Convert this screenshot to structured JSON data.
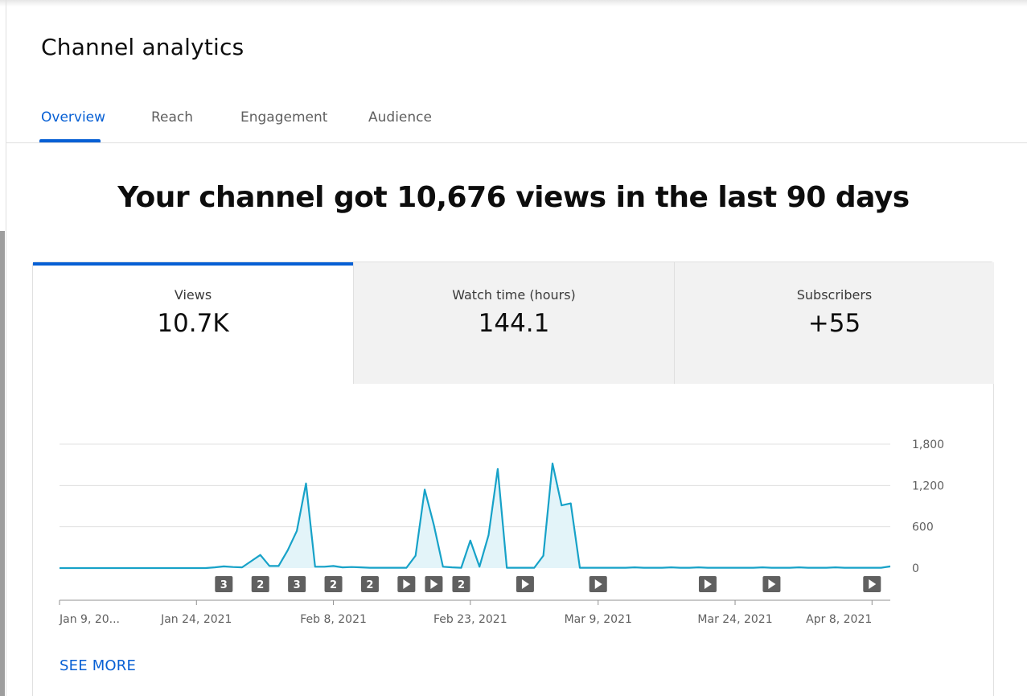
{
  "header": {
    "title": "Channel analytics"
  },
  "tabs": [
    {
      "label": "Overview",
      "active": true
    },
    {
      "label": "Reach",
      "active": false
    },
    {
      "label": "Engagement",
      "active": false
    },
    {
      "label": "Audience",
      "active": false
    }
  ],
  "headline": "Your channel got 10,676 views in the last 90 days",
  "metrics": [
    {
      "label": "Views",
      "value": "10.7K",
      "active": true
    },
    {
      "label": "Watch time (hours)",
      "value": "144.1",
      "active": false
    },
    {
      "label": "Subscribers",
      "value": "+55",
      "active": false
    }
  ],
  "colors": {
    "accent": "#065fd4",
    "line": "#17a2c8",
    "fill": "#e3f4f9",
    "marker": "#606060"
  },
  "chart_data": {
    "type": "line",
    "x_tick_labels": [
      "Jan 9, 20...",
      "Jan 24, 2021",
      "Feb 8, 2021",
      "Feb 23, 2021",
      "Mar 9, 2021",
      "Mar 24, 2021",
      "Apr 8, 2021"
    ],
    "x_tick_days": [
      0,
      15,
      30,
      45,
      59,
      74,
      89
    ],
    "y_ticks": [
      {
        "value": 0,
        "label": "0"
      },
      {
        "value": 600,
        "label": "600"
      },
      {
        "value": 1200,
        "label": "1,200"
      },
      {
        "value": 1800,
        "label": "1,800"
      }
    ],
    "ylim": [
      0,
      1800
    ],
    "grid": true,
    "values": [
      0,
      0,
      0,
      0,
      0,
      0,
      0,
      0,
      0,
      0,
      0,
      0,
      0,
      0,
      0,
      0,
      0,
      10,
      25,
      15,
      10,
      100,
      190,
      30,
      30,
      260,
      540,
      1230,
      20,
      20,
      30,
      10,
      15,
      10,
      5,
      5,
      5,
      5,
      5,
      180,
      1140,
      630,
      20,
      10,
      5,
      400,
      20,
      480,
      1440,
      5,
      5,
      5,
      5,
      180,
      1520,
      910,
      940,
      5,
      5,
      5,
      5,
      5,
      5,
      10,
      5,
      5,
      5,
      10,
      5,
      5,
      10,
      5,
      5,
      5,
      5,
      5,
      5,
      10,
      5,
      5,
      5,
      10,
      5,
      5,
      5,
      10,
      5,
      5,
      5,
      5,
      5,
      25
    ],
    "markers": [
      {
        "day": 18,
        "label": "3"
      },
      {
        "day": 22,
        "label": "2"
      },
      {
        "day": 26,
        "label": "3"
      },
      {
        "day": 30,
        "label": "2"
      },
      {
        "day": 34,
        "label": "2"
      },
      {
        "day": 38,
        "label": "▶"
      },
      {
        "day": 41,
        "label": "▶"
      },
      {
        "day": 44,
        "label": "2"
      },
      {
        "day": 51,
        "label": "▶"
      },
      {
        "day": 59,
        "label": "▶"
      },
      {
        "day": 71,
        "label": "▶"
      },
      {
        "day": 78,
        "label": "▶"
      },
      {
        "day": 89,
        "label": "▶"
      }
    ]
  },
  "footer": {
    "see_more": "SEE MORE"
  }
}
